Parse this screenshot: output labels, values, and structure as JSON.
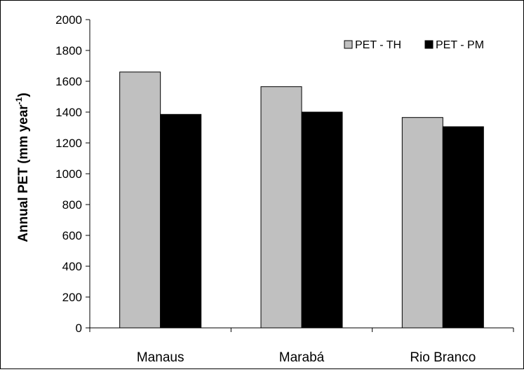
{
  "chart_data": {
    "type": "bar",
    "title": "",
    "xlabel": "",
    "ylabel": "Annual PET (mm year",
    "ylabel_superscript": "-1",
    "ylabel_suffix": ")",
    "ylim": [
      0,
      2000
    ],
    "yticks": [
      0,
      200,
      400,
      600,
      800,
      1000,
      1200,
      1400,
      1600,
      1800,
      2000
    ],
    "categories": [
      "Manaus",
      "Marabá",
      "Rio Branco"
    ],
    "series": [
      {
        "name": "PET - TH",
        "values": [
          1660,
          1565,
          1365
        ],
        "color": "#c0c0c0"
      },
      {
        "name": "PET - PM",
        "values": [
          1385,
          1400,
          1305
        ],
        "color": "#000000"
      }
    ],
    "grid": false,
    "legend_position": "top-right"
  }
}
